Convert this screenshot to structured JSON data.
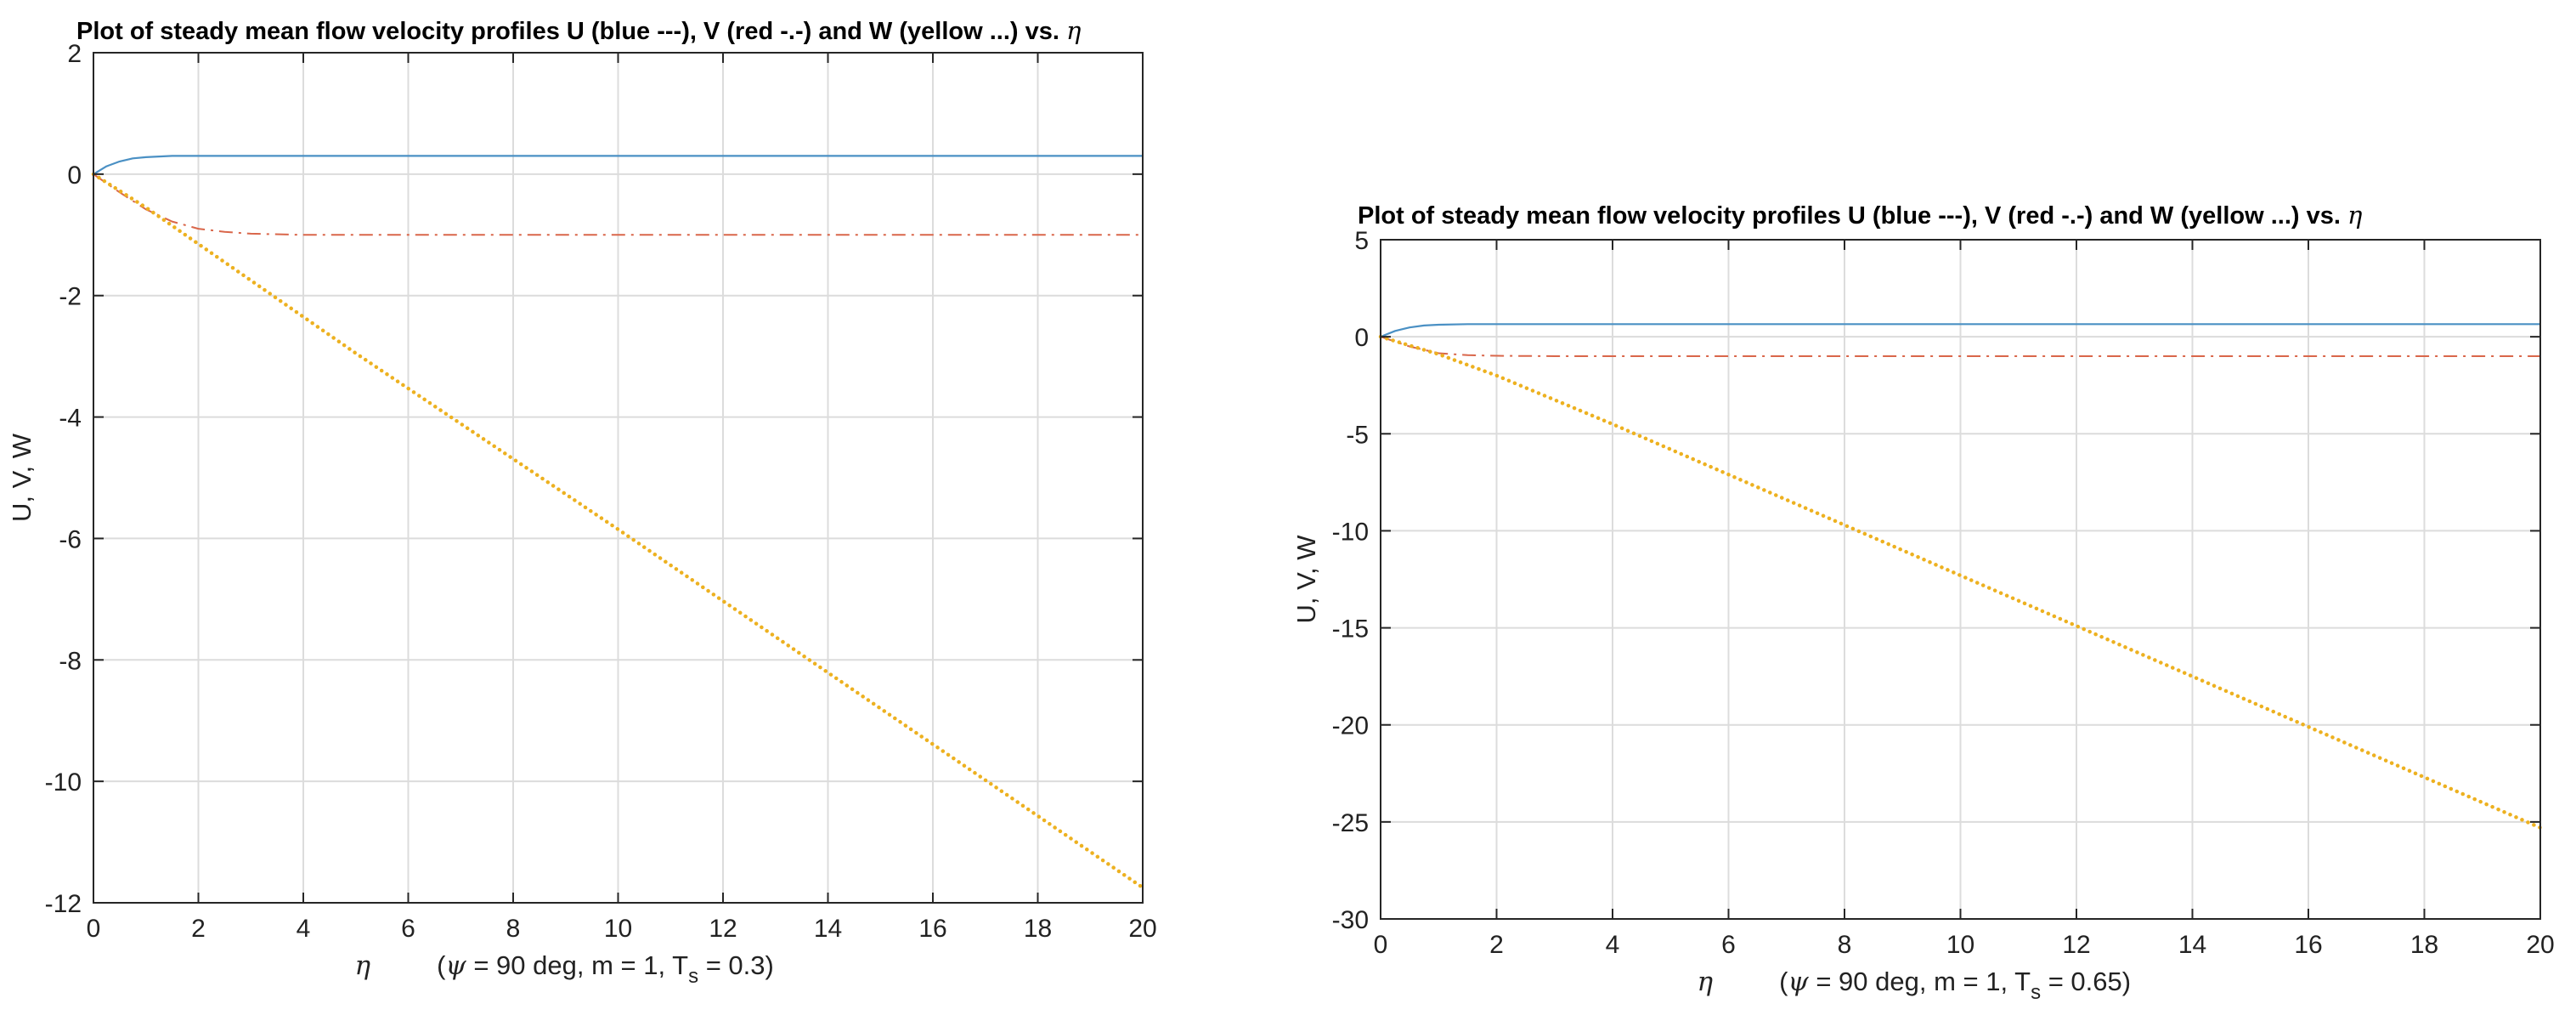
{
  "chart_data": [
    {
      "type": "line",
      "title": "Plot of steady mean flow velocity profiles U (blue ---), V (red -.-) and W (yellow ...) vs.",
      "title_symbol": "η",
      "xlabel_symbol": "η",
      "xlabel_psi": "ψ",
      "xlabel_params_pre": " = 90 deg, m = 1, T",
      "xlabel_sub": "s",
      "xlabel_params_post": " = 0.3)",
      "ylabel": "U, V, W",
      "xlim": [
        0,
        20
      ],
      "ylim": [
        -12,
        2
      ],
      "xticks": [
        0,
        2,
        4,
        6,
        8,
        10,
        12,
        14,
        16,
        18,
        20
      ],
      "yticks": [
        2,
        0,
        -2,
        -4,
        -6,
        -8,
        -10,
        -12
      ],
      "grid": true,
      "series": [
        {
          "name": "U",
          "style": "solid",
          "color": "#4a90c4",
          "x": [
            0,
            0.25,
            0.5,
            0.75,
            1,
            1.5,
            2,
            3,
            5,
            10,
            20
          ],
          "y": [
            0,
            0.13,
            0.21,
            0.26,
            0.28,
            0.3,
            0.3,
            0.3,
            0.3,
            0.3,
            0.3
          ]
        },
        {
          "name": "V",
          "style": "dashdot",
          "color": "#d9664a",
          "x": [
            0,
            0.5,
            1,
            1.5,
            2,
            2.5,
            3,
            4,
            6,
            10,
            20
          ],
          "y": [
            0,
            -0.3,
            -0.58,
            -0.78,
            -0.9,
            -0.95,
            -0.98,
            -1.0,
            -1.0,
            -1.0,
            -1.0
          ]
        },
        {
          "name": "W",
          "style": "dotted",
          "color": "#edb120",
          "x": [
            0,
            1,
            2,
            5,
            10,
            15,
            20
          ],
          "y": [
            0,
            -0.55,
            -1.15,
            -2.95,
            -5.85,
            -8.8,
            -11.75
          ]
        }
      ]
    },
    {
      "type": "line",
      "title": "Plot of steady mean flow velocity profiles U (blue ---), V (red -.-) and W (yellow ...) vs.",
      "title_symbol": "η",
      "xlabel_symbol": "η",
      "xlabel_psi": "ψ",
      "xlabel_params_pre": " = 90 deg, m = 1, T",
      "xlabel_sub": "s",
      "xlabel_params_post": " = 0.65)",
      "ylabel": "U, V, W",
      "xlim": [
        0,
        20
      ],
      "ylim": [
        -30,
        5
      ],
      "xticks": [
        0,
        2,
        4,
        6,
        8,
        10,
        12,
        14,
        16,
        18,
        20
      ],
      "yticks": [
        5,
        0,
        -5,
        -10,
        -15,
        -20,
        -25,
        -30
      ],
      "grid": true,
      "series": [
        {
          "name": "U",
          "style": "solid",
          "color": "#4a90c4",
          "x": [
            0,
            0.25,
            0.5,
            0.75,
            1,
            1.5,
            2,
            3,
            5,
            10,
            20
          ],
          "y": [
            0,
            0.3,
            0.48,
            0.58,
            0.62,
            0.65,
            0.65,
            0.65,
            0.65,
            0.65,
            0.65
          ]
        },
        {
          "name": "V",
          "style": "dashdot",
          "color": "#d9664a",
          "x": [
            0,
            0.5,
            1,
            1.5,
            2,
            3,
            5,
            10,
            20
          ],
          "y": [
            0,
            -0.5,
            -0.85,
            -0.95,
            -0.98,
            -1.0,
            -1.0,
            -1.0,
            -1.0
          ]
        },
        {
          "name": "W",
          "style": "dotted",
          "color": "#edb120",
          "x": [
            0,
            1,
            2,
            4,
            8,
            12,
            16,
            20
          ],
          "y": [
            0,
            -0.9,
            -2.0,
            -4.5,
            -9.7,
            -14.9,
            -20.1,
            -25.3
          ]
        }
      ]
    }
  ]
}
